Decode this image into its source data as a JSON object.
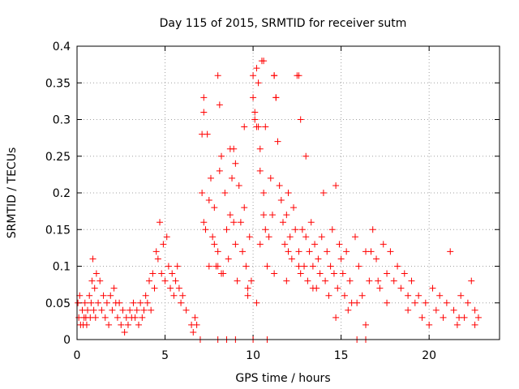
{
  "chart_data": {
    "type": "scatter",
    "title": "Day 115 of 2015, SRMTID for receiver sutm",
    "xlabel": "GPS time / hours",
    "ylabel": "SRMTID / TECUs",
    "xlim": [
      0,
      24
    ],
    "ylim": [
      0,
      0.4
    ],
    "xticks": [
      0,
      5,
      10,
      15,
      20
    ],
    "xtick_labels": [
      "0",
      "5",
      "10",
      "15",
      "20"
    ],
    "yticks": [
      0,
      0.05,
      0.1,
      0.15,
      0.2,
      0.25,
      0.3,
      0.35,
      0.4
    ],
    "ytick_labels": [
      "0",
      "0.05",
      "0.1",
      "0.15",
      "0.2",
      "0.25",
      "0.3",
      "0.35",
      "0.4"
    ],
    "grid": true,
    "marker": "+",
    "color": "#ff0000",
    "series": [
      {
        "name": "SRMTID",
        "x": [
          0.05,
          0.1,
          0.15,
          0.2,
          0.3,
          0.35,
          0.4,
          0.45,
          0.5,
          0.55,
          0.6,
          0.7,
          0.75,
          0.8,
          0.85,
          0.9,
          0.95,
          1.0,
          1.05,
          1.1,
          1.2,
          1.3,
          1.4,
          1.5,
          1.6,
          1.7,
          1.8,
          1.9,
          2.0,
          2.1,
          2.2,
          2.3,
          2.4,
          2.5,
          2.6,
          2.7,
          2.8,
          2.9,
          3.0,
          3.1,
          3.2,
          3.3,
          3.4,
          3.5,
          3.6,
          3.7,
          3.8,
          3.9,
          4.0,
          4.1,
          4.2,
          4.3,
          4.4,
          4.5,
          4.6,
          4.7,
          4.8,
          4.9,
          5.0,
          5.1,
          5.2,
          5.3,
          5.4,
          5.5,
          5.6,
          5.7,
          5.8,
          5.9,
          6.0,
          6.2,
          6.5,
          6.6,
          6.7,
          6.8,
          7.1,
          7.2,
          7.3,
          7.4,
          7.5,
          7.6,
          7.7,
          7.8,
          7.9,
          8.0,
          8.1,
          8.2,
          8.3,
          8.4,
          8.5,
          8.6,
          8.7,
          8.8,
          8.9,
          9.0,
          9.1,
          9.2,
          9.3,
          9.4,
          9.5,
          9.6,
          9.7,
          9.8,
          9.9,
          10.0,
          10.1,
          10.2,
          10.3,
          10.4,
          10.5,
          10.6,
          10.7,
          10.8,
          10.9,
          11.0,
          11.1,
          11.2,
          11.3,
          11.4,
          11.5,
          11.6,
          11.7,
          11.8,
          11.9,
          12.0,
          12.1,
          12.2,
          12.3,
          12.4,
          12.5,
          12.6,
          12.7,
          12.8,
          12.9,
          13.0,
          13.1,
          13.2,
          13.3,
          13.4,
          13.5,
          13.6,
          13.7,
          13.8,
          13.9,
          14.0,
          14.1,
          14.2,
          14.3,
          14.4,
          14.5,
          14.6,
          14.7,
          14.8,
          14.9,
          15.0,
          15.1,
          15.2,
          15.3,
          15.4,
          15.5,
          15.6,
          15.8,
          16.0,
          16.2,
          16.4,
          16.6,
          16.8,
          17.0,
          17.2,
          17.4,
          17.6,
          17.8,
          18.0,
          18.2,
          18.4,
          18.6,
          18.8,
          19.0,
          19.2,
          19.4,
          19.6,
          19.8,
          20.0,
          20.2,
          20.4,
          20.6,
          20.8,
          21.0,
          21.2,
          21.4,
          21.6,
          21.8,
          22.0,
          22.2,
          22.4,
          22.6,
          22.8,
          7.1,
          7.2,
          8.0,
          8.1,
          8.7,
          9.0,
          9.5,
          10.0,
          10.1,
          10.2,
          10.3,
          10.4,
          10.6,
          10.7,
          11.2,
          11.3,
          12.6,
          12.7,
          13.0,
          7.2,
          7.5,
          7.8,
          8.0,
          8.2,
          8.9,
          9.7,
          10.2,
          10.4,
          10.6,
          11.2,
          11.9,
          12.0,
          12.6,
          13.4,
          14.7,
          15.9,
          16.4,
          16.7,
          17.1,
          17.6,
          18.8,
          21.7,
          22.6,
          7.0,
          8.0,
          8.5,
          9.0,
          10.0,
          10.8,
          15.9,
          16.4
        ],
        "y": [
          0.05,
          0.03,
          0.06,
          0.02,
          0.04,
          0.02,
          0.03,
          0.05,
          0.03,
          0.02,
          0.04,
          0.06,
          0.03,
          0.05,
          0.08,
          0.11,
          0.04,
          0.07,
          0.03,
          0.09,
          0.05,
          0.08,
          0.04,
          0.06,
          0.03,
          0.05,
          0.02,
          0.06,
          0.04,
          0.07,
          0.05,
          0.03,
          0.05,
          0.02,
          0.04,
          0.01,
          0.03,
          0.02,
          0.04,
          0.03,
          0.05,
          0.03,
          0.04,
          0.02,
          0.05,
          0.03,
          0.04,
          0.06,
          0.05,
          0.08,
          0.04,
          0.09,
          0.07,
          0.12,
          0.11,
          0.16,
          0.09,
          0.13,
          0.08,
          0.14,
          0.1,
          0.07,
          0.09,
          0.06,
          0.08,
          0.1,
          0.07,
          0.05,
          0.06,
          0.04,
          0.02,
          0.01,
          0.03,
          0.02,
          0.2,
          0.33,
          0.15,
          0.28,
          0.1,
          0.22,
          0.14,
          0.18,
          0.1,
          0.12,
          0.32,
          0.25,
          0.09,
          0.2,
          0.15,
          0.11,
          0.17,
          0.22,
          0.26,
          0.13,
          0.08,
          0.21,
          0.16,
          0.12,
          0.18,
          0.1,
          0.06,
          0.14,
          0.08,
          0.33,
          0.3,
          0.37,
          0.29,
          0.23,
          0.38,
          0.2,
          0.15,
          0.1,
          0.14,
          0.22,
          0.17,
          0.36,
          0.33,
          0.27,
          0.21,
          0.19,
          0.16,
          0.13,
          0.17,
          0.2,
          0.14,
          0.11,
          0.18,
          0.15,
          0.36,
          0.12,
          0.09,
          0.15,
          0.1,
          0.14,
          0.08,
          0.12,
          0.16,
          0.1,
          0.13,
          0.07,
          0.11,
          0.09,
          0.14,
          0.2,
          0.08,
          0.12,
          0.06,
          0.1,
          0.15,
          0.09,
          0.21,
          0.07,
          0.13,
          0.11,
          0.09,
          0.06,
          0.12,
          0.04,
          0.08,
          0.05,
          0.14,
          0.1,
          0.06,
          0.12,
          0.08,
          0.15,
          0.11,
          0.07,
          0.13,
          0.09,
          0.12,
          0.08,
          0.1,
          0.07,
          0.09,
          0.06,
          0.08,
          0.05,
          0.06,
          0.03,
          0.05,
          0.02,
          0.07,
          0.04,
          0.06,
          0.03,
          0.05,
          0.12,
          0.04,
          0.02,
          0.06,
          0.03,
          0.05,
          0.08,
          0.04,
          0.03,
          0.28,
          0.31,
          0.36,
          0.23,
          0.26,
          0.24,
          0.29,
          0.36,
          0.31,
          0.29,
          0.35,
          0.26,
          0.38,
          0.29,
          0.36,
          0.33,
          0.36,
          0.3,
          0.25,
          0.16,
          0.19,
          0.13,
          0.1,
          0.09,
          0.16,
          0.07,
          0.05,
          0.13,
          0.17,
          0.09,
          0.08,
          0.12,
          0.1,
          0.07,
          0.03,
          0.05,
          0.02,
          0.12,
          0.08,
          0.05,
          0.04,
          0.03,
          0.02,
          0.0,
          0.0,
          0.0,
          0.0,
          0.0,
          0.0,
          0.0,
          0.0
        ]
      }
    ]
  }
}
